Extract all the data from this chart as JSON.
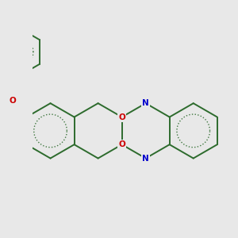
{
  "bg": "#e8e8e8",
  "bc": "#2d6b2d",
  "nc": "#0000cc",
  "oc": "#cc0000",
  "fc": "#cc00cc",
  "lw": 1.4,
  "lw_inner": 1.0,
  "fs": 7.5,
  "figsize": [
    3.0,
    3.0
  ],
  "dpi": 100,
  "xlim": [
    -0.3,
    4.8
  ],
  "ylim": [
    -3.2,
    2.8
  ]
}
